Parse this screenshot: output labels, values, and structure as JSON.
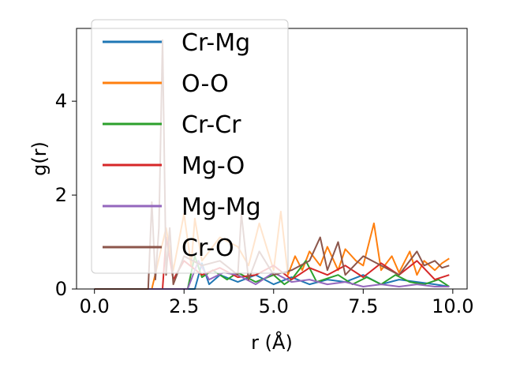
{
  "chart_data": {
    "type": "line",
    "title": "",
    "xlabel": "r (Å)",
    "ylabel": "g(r)",
    "xlim": [
      -0.5,
      10.4
    ],
    "ylim": [
      0,
      5.55
    ],
    "xticks": [
      0.0,
      2.5,
      5.0,
      7.5,
      10.0
    ],
    "xtick_labels": [
      "0.0",
      "2.5",
      "5.0",
      "7.5",
      "10.0"
    ],
    "yticks": [
      0,
      2,
      4
    ],
    "ytick_labels": [
      "0",
      "2",
      "4"
    ],
    "grid": false,
    "legend_position": "upper left",
    "series": [
      {
        "name": "Cr-Mg",
        "color": "#1f77b4",
        "x": [
          0,
          1.5,
          2.8,
          3.0,
          3.2,
          3.5,
          4.0,
          4.5,
          5.0,
          5.5,
          6.0,
          6.5,
          7.0,
          7.5,
          8.0,
          8.5,
          9.0,
          9.5,
          9.9
        ],
        "y": [
          0,
          0,
          0,
          0.55,
          0.1,
          0.3,
          0.15,
          0.3,
          0.1,
          0.25,
          0.1,
          0.2,
          0.15,
          0.3,
          0.1,
          0.2,
          0.15,
          0.1,
          0.05
        ]
      },
      {
        "name": "O-O",
        "color": "#ff7f0e",
        "x": [
          0,
          1.6,
          2.0,
          2.2,
          2.5,
          2.7,
          2.8,
          3.0,
          3.5,
          4.0,
          4.3,
          4.6,
          5.0,
          5.2,
          5.4,
          5.6,
          5.8,
          6.0,
          6.3,
          6.5,
          6.8,
          7.0,
          7.3,
          7.5,
          7.8,
          8.0,
          8.3,
          8.5,
          8.8,
          9.0,
          9.2,
          9.5,
          9.7,
          9.9
        ],
        "y": [
          0,
          0,
          1.3,
          0.4,
          1.6,
          0.5,
          1.5,
          0.6,
          1.1,
          0.9,
          0.5,
          1.4,
          0.4,
          1.65,
          0.3,
          0.7,
          0.4,
          0.8,
          0.5,
          0.9,
          0.4,
          0.85,
          0.6,
          0.5,
          1.4,
          0.4,
          0.7,
          0.35,
          0.8,
          0.3,
          0.6,
          0.4,
          0.55,
          0.65
        ]
      },
      {
        "name": "Cr-Cr",
        "color": "#2ca02c",
        "x": [
          0,
          2.6,
          2.8,
          3.0,
          3.3,
          3.7,
          4.0,
          4.5,
          5.0,
          5.3,
          5.5,
          5.9,
          6.2,
          6.8,
          7.2,
          7.6,
          8.0,
          8.4,
          8.8,
          9.2,
          9.6,
          9.9
        ],
        "y": [
          0,
          0,
          0.7,
          0.25,
          0.4,
          0.2,
          0.35,
          0.15,
          0.3,
          0.1,
          0.2,
          0.6,
          0.15,
          0.3,
          0.1,
          0.25,
          0.1,
          0.3,
          0.15,
          0.1,
          0.2,
          0.05
        ]
      },
      {
        "name": "Mg-O",
        "color": "#d62728",
        "x": [
          0,
          1.9,
          2.0,
          2.2,
          2.5,
          3.0,
          3.5,
          4.0,
          4.5,
          5.0,
          5.5,
          6.0,
          6.5,
          7.0,
          7.5,
          8.0,
          8.5,
          9.0,
          9.5,
          9.9
        ],
        "y": [
          0,
          0,
          1.1,
          0.2,
          0.6,
          0.3,
          0.45,
          0.25,
          0.3,
          0.5,
          0.2,
          0.45,
          0.3,
          0.5,
          0.25,
          0.55,
          0.3,
          0.6,
          0.2,
          0.3
        ]
      },
      {
        "name": "Mg-Mg",
        "color": "#9467bd",
        "x": [
          0,
          2.6,
          2.9,
          3.2,
          3.6,
          4.0,
          4.5,
          5.0,
          5.5,
          6.0,
          6.5,
          7.0,
          7.5,
          8.0,
          8.5,
          9.0,
          9.5,
          9.9
        ],
        "y": [
          0,
          0,
          0.6,
          0.2,
          0.35,
          0.3,
          0.1,
          0.35,
          0.15,
          0.2,
          0.1,
          0.15,
          0.05,
          0.1,
          0.05,
          0.1,
          0.05,
          0.05
        ]
      },
      {
        "name": "Cr-O",
        "color": "#8c564b",
        "x": [
          0,
          1.5,
          1.6,
          1.7,
          1.8,
          1.9,
          2.0,
          2.1,
          2.2,
          2.5,
          3.0,
          3.5,
          4.0,
          4.1,
          4.3,
          4.6,
          5.0,
          5.5,
          6.0,
          6.3,
          6.5,
          6.8,
          7.0,
          7.5,
          8.0,
          8.5,
          9.0,
          9.2,
          9.5,
          9.7,
          9.9
        ],
        "y": [
          0,
          0,
          1.85,
          0.2,
          1.3,
          5.3,
          0.3,
          1.3,
          0.1,
          0.7,
          0.5,
          0.6,
          0.3,
          1.6,
          0.2,
          0.8,
          0.3,
          0.4,
          0.6,
          1.1,
          0.4,
          1.0,
          0.3,
          0.7,
          0.5,
          0.3,
          0.8,
          0.5,
          0.6,
          0.45,
          0.5
        ]
      }
    ]
  }
}
